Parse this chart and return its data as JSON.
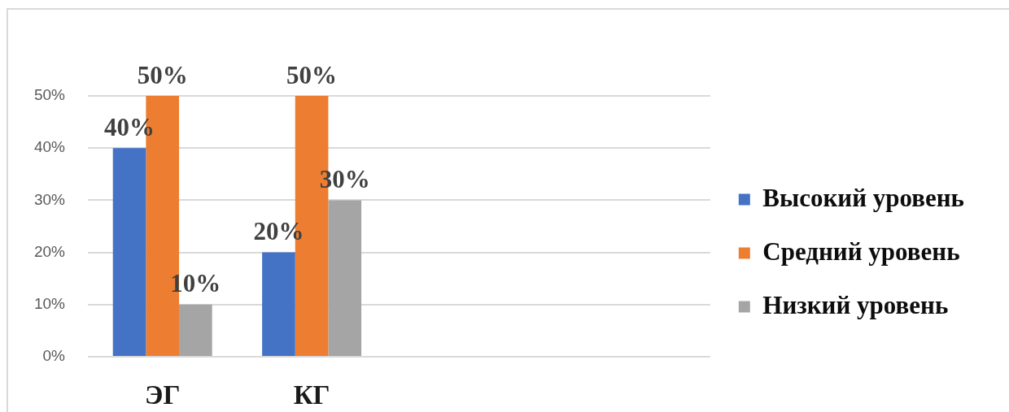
{
  "chart_data": {
    "type": "bar",
    "categories": [
      "ЭГ",
      "КГ"
    ],
    "series": [
      {
        "name": "Высокий уровень",
        "color": "#4472c4",
        "values": [
          40,
          20
        ],
        "value_labels": [
          "40%",
          "20%"
        ]
      },
      {
        "name": "Средний уровень",
        "color": "#ed7d31",
        "values": [
          50,
          50
        ],
        "value_labels": [
          "50%",
          "50%"
        ]
      },
      {
        "name": "Низкий уровень",
        "color": "#a5a5a5",
        "values": [
          10,
          30
        ],
        "value_labels": [
          "10%",
          "30%"
        ]
      }
    ],
    "ylim": [
      0,
      50
    ],
    "yticks": [
      {
        "value": 0,
        "label": "0%"
      },
      {
        "value": 10,
        "label": "10%"
      },
      {
        "value": 20,
        "label": "20%"
      },
      {
        "value": 30,
        "label": "30%"
      },
      {
        "value": 40,
        "label": "40%"
      },
      {
        "value": 50,
        "label": "50%"
      }
    ],
    "grid": "y",
    "legend": "right"
  }
}
